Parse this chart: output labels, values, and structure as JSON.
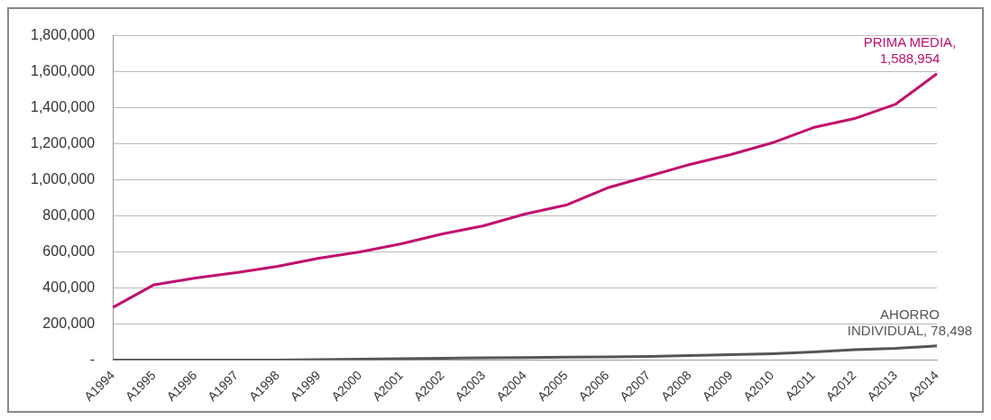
{
  "chart_data": {
    "type": "line",
    "categories": [
      "A1994",
      "A1995",
      "A1996",
      "A1997",
      "A1998",
      "A1999",
      "A2000",
      "A2001",
      "A2002",
      "A2003",
      "A2004",
      "A2005",
      "A2006",
      "A2007",
      "A2008",
      "A2009",
      "A2010",
      "A2011",
      "A2012",
      "A2013",
      "A2014"
    ],
    "series": [
      {
        "name": "PRIMA MEDIA,",
        "color": "#c0106e",
        "values": [
          292000,
          418000,
          455000,
          485000,
          520000,
          565000,
          600000,
          645000,
          700000,
          745000,
          810000,
          860000,
          955000,
          1020000,
          1085000,
          1140000,
          1205000,
          1290000,
          1340000,
          1420000,
          1588954
        ],
        "value_labels": [
          null,
          null,
          null,
          null,
          null,
          null,
          null,
          null,
          null,
          null,
          null,
          null,
          null,
          null,
          null,
          null,
          null,
          null,
          null,
          null,
          "1,588,954"
        ]
      },
      {
        "name": "AHORRO INDIVIDUAL,",
        "color": "#555555",
        "values": [
          0,
          0,
          0,
          0,
          0,
          3000,
          5000,
          8000,
          10000,
          12000,
          14000,
          16000,
          18000,
          20000,
          25000,
          30000,
          35000,
          45000,
          57000,
          65000,
          78498
        ],
        "value_labels": [
          null,
          null,
          null,
          null,
          null,
          null,
          null,
          null,
          null,
          null,
          null,
          null,
          null,
          null,
          null,
          null,
          null,
          null,
          null,
          null,
          "78,498"
        ]
      }
    ],
    "ylim": [
      0,
      1800000
    ],
    "yticks": [
      {
        "value": 0,
        "label": "-"
      },
      {
        "value": 200000,
        "label": "200,000"
      },
      {
        "value": 400000,
        "label": "400,000"
      },
      {
        "value": 600000,
        "label": "600,000"
      },
      {
        "value": 800000,
        "label": "800,000"
      },
      {
        "value": 1000000,
        "label": "1,000,000"
      },
      {
        "value": 1200000,
        "label": "1,200,000"
      },
      {
        "value": 1400000,
        "label": "1,400,000"
      },
      {
        "value": 1600000,
        "label": "1,600,000"
      },
      {
        "value": 1800000,
        "label": "1,800,000"
      }
    ],
    "grid": "y",
    "legend": false,
    "marker": "none",
    "line_style": "solid"
  }
}
